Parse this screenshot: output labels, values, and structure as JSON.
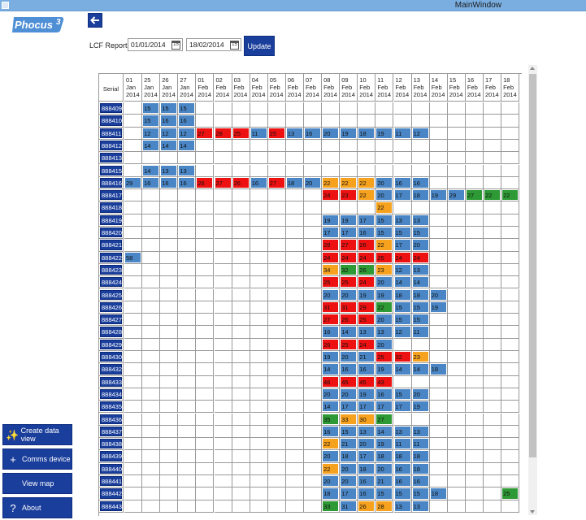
{
  "window": {
    "title": "MainWindow"
  },
  "brand": {
    "logo_text": "Phocus",
    "logo_superscript": "3"
  },
  "sidebar": {
    "buttons": [
      {
        "name": "create-data-view-button",
        "icon": "sparkle-icon",
        "glyph": "✨",
        "label": "Create data view"
      },
      {
        "name": "comms-device-button",
        "icon": "plus-icon",
        "glyph": "+",
        "label": "Comms device"
      },
      {
        "name": "view-map-button",
        "icon": "",
        "glyph": "",
        "label": "View map"
      },
      {
        "name": "about-button",
        "icon": "question-icon",
        "glyph": "?",
        "label": "About"
      }
    ]
  },
  "toolbar": {
    "back_icon": "back-arrow-icon",
    "report_label": "LCF Report",
    "date_from": "01/01/2014",
    "date_to": "18/02/2014",
    "calendar_day": "15",
    "update_label": "Update"
  },
  "colors": {
    "blue": "#4a86c5",
    "red": "#ee1111",
    "orange": "#f7a21e",
    "green": "#2e9a35",
    "button": "#1a3e9b"
  },
  "table": {
    "serial_header": "Serial",
    "columns": [
      [
        "01",
        "Jan",
        "2014"
      ],
      [
        "25",
        "Jan",
        "2014"
      ],
      [
        "26",
        "Jan",
        "2014"
      ],
      [
        "27",
        "Jan",
        "2014"
      ],
      [
        "01",
        "Feb",
        "2014"
      ],
      [
        "02",
        "Feb",
        "2014"
      ],
      [
        "03",
        "Feb",
        "2014"
      ],
      [
        "04",
        "Feb",
        "2014"
      ],
      [
        "05",
        "Feb",
        "2014"
      ],
      [
        "06",
        "Feb",
        "2014"
      ],
      [
        "07",
        "Feb",
        "2014"
      ],
      [
        "08",
        "Feb",
        "2014"
      ],
      [
        "09",
        "Feb",
        "2014"
      ],
      [
        "10",
        "Feb",
        "2014"
      ],
      [
        "11",
        "Feb",
        "2014"
      ],
      [
        "12",
        "Feb",
        "2014"
      ],
      [
        "13",
        "Feb",
        "2014"
      ],
      [
        "14",
        "Feb",
        "2014"
      ],
      [
        "15",
        "Feb",
        "2014"
      ],
      [
        "16",
        "Feb",
        "2014"
      ],
      [
        "17",
        "Feb",
        "2014"
      ],
      [
        "18",
        "Feb",
        "2014"
      ]
    ],
    "rows": [
      {
        "serial": "888409",
        "cells": [
          [
            1,
            "15",
            "b"
          ],
          [
            2,
            "15",
            "b"
          ],
          [
            3,
            "15",
            "b"
          ]
        ]
      },
      {
        "serial": "888410",
        "cells": [
          [
            1,
            "15",
            "b"
          ],
          [
            2,
            "16",
            "b"
          ],
          [
            3,
            "16",
            "b"
          ]
        ]
      },
      {
        "serial": "888411",
        "cells": [
          [
            1,
            "12",
            "b"
          ],
          [
            2,
            "12",
            "b"
          ],
          [
            3,
            "12",
            "b"
          ],
          [
            4,
            "27",
            "r"
          ],
          [
            5,
            "28",
            "r"
          ],
          [
            6,
            "25",
            "r"
          ],
          [
            7,
            "11",
            "b"
          ],
          [
            8,
            "25",
            "r"
          ],
          [
            9,
            "13",
            "b"
          ],
          [
            10,
            "16",
            "b"
          ],
          [
            11,
            "20",
            "b"
          ],
          [
            12,
            "19",
            "b"
          ],
          [
            13,
            "18",
            "b"
          ],
          [
            14,
            "19",
            "b"
          ],
          [
            15,
            "11",
            "b"
          ],
          [
            16,
            "12",
            "b"
          ]
        ]
      },
      {
        "serial": "888412",
        "cells": [
          [
            1,
            "14",
            "b"
          ],
          [
            2,
            "14",
            "b"
          ],
          [
            3,
            "14",
            "b"
          ]
        ]
      },
      {
        "serial": "888413",
        "cells": []
      },
      {
        "serial": "888415",
        "cells": [
          [
            1,
            "14",
            "b"
          ],
          [
            2,
            "13",
            "b"
          ],
          [
            3,
            "13",
            "b"
          ]
        ]
      },
      {
        "serial": "888416",
        "cells": [
          [
            0,
            "29",
            "b"
          ],
          [
            1,
            "16",
            "b"
          ],
          [
            2,
            "16",
            "b"
          ],
          [
            3,
            "16",
            "b"
          ],
          [
            4,
            "26",
            "r"
          ],
          [
            5,
            "27",
            "r"
          ],
          [
            6,
            "26",
            "r"
          ],
          [
            7,
            "16",
            "b"
          ],
          [
            8,
            "27",
            "r"
          ],
          [
            9,
            "18",
            "b"
          ],
          [
            10,
            "20",
            "b"
          ],
          [
            11,
            "22",
            "o"
          ],
          [
            12,
            "22",
            "o"
          ],
          [
            13,
            "22",
            "o"
          ],
          [
            14,
            "20",
            "b"
          ],
          [
            15,
            "16",
            "b"
          ],
          [
            16,
            "16",
            "b"
          ]
        ]
      },
      {
        "serial": "888417",
        "cells": [
          [
            11,
            "24",
            "r"
          ],
          [
            12,
            "23",
            "r"
          ],
          [
            13,
            "22",
            "o"
          ],
          [
            14,
            "20",
            "b"
          ],
          [
            15,
            "17",
            "b"
          ],
          [
            16,
            "18",
            "b"
          ],
          [
            17,
            "19",
            "b"
          ],
          [
            18,
            "29",
            "b"
          ],
          [
            19,
            "27",
            "g"
          ],
          [
            20,
            "22",
            "g"
          ],
          [
            21,
            "22",
            "g"
          ]
        ]
      },
      {
        "serial": "888418",
        "cells": [
          [
            14,
            "22",
            "o"
          ]
        ]
      },
      {
        "serial": "888419",
        "cells": [
          [
            11,
            "19",
            "b"
          ],
          [
            12,
            "19",
            "b"
          ],
          [
            13,
            "17",
            "b"
          ],
          [
            14,
            "15",
            "b"
          ],
          [
            15,
            "13",
            "b"
          ],
          [
            16,
            "13",
            "b"
          ]
        ]
      },
      {
        "serial": "888420",
        "cells": [
          [
            11,
            "17",
            "b"
          ],
          [
            12,
            "17",
            "b"
          ],
          [
            13,
            "16",
            "b"
          ],
          [
            14,
            "15",
            "b"
          ],
          [
            15,
            "15",
            "b"
          ],
          [
            16,
            "15",
            "b"
          ]
        ]
      },
      {
        "serial": "888421",
        "cells": [
          [
            11,
            "28",
            "r"
          ],
          [
            12,
            "27",
            "r"
          ],
          [
            13,
            "26",
            "r"
          ],
          [
            14,
            "22",
            "o"
          ],
          [
            15,
            "17",
            "b"
          ],
          [
            16,
            "20",
            "b"
          ]
        ]
      },
      {
        "serial": "888422",
        "cells": [
          [
            0,
            "58",
            "b"
          ],
          [
            11,
            "24",
            "r"
          ],
          [
            12,
            "24",
            "r"
          ],
          [
            13,
            "24",
            "r"
          ],
          [
            14,
            "25",
            "r"
          ],
          [
            15,
            "24",
            "r"
          ],
          [
            16,
            "24",
            "r"
          ]
        ]
      },
      {
        "serial": "888423",
        "cells": [
          [
            11,
            "34",
            "o"
          ],
          [
            12,
            "32",
            "g"
          ],
          [
            13,
            "26",
            "g"
          ],
          [
            14,
            "23",
            "o"
          ],
          [
            15,
            "12",
            "b"
          ],
          [
            16,
            "13",
            "b"
          ]
        ]
      },
      {
        "serial": "888424",
        "cells": [
          [
            11,
            "25",
            "r"
          ],
          [
            12,
            "25",
            "r"
          ],
          [
            13,
            "24",
            "r"
          ],
          [
            14,
            "20",
            "b"
          ],
          [
            15,
            "14",
            "b"
          ],
          [
            16,
            "14",
            "b"
          ]
        ]
      },
      {
        "serial": "888425",
        "cells": [
          [
            11,
            "20",
            "b"
          ],
          [
            12,
            "20",
            "b"
          ],
          [
            13,
            "19",
            "b"
          ],
          [
            14,
            "19",
            "b"
          ],
          [
            15,
            "18",
            "b"
          ],
          [
            16,
            "18",
            "b"
          ],
          [
            17,
            "20",
            "b"
          ]
        ]
      },
      {
        "serial": "888426",
        "cells": [
          [
            11,
            "31",
            "r"
          ],
          [
            12,
            "31",
            "r"
          ],
          [
            13,
            "29",
            "r"
          ],
          [
            14,
            "22",
            "g"
          ],
          [
            15,
            "15",
            "b"
          ],
          [
            16,
            "15",
            "b"
          ],
          [
            17,
            "19",
            "b"
          ]
        ]
      },
      {
        "serial": "888427",
        "cells": [
          [
            11,
            "27",
            "r"
          ],
          [
            12,
            "26",
            "r"
          ],
          [
            13,
            "25",
            "r"
          ],
          [
            14,
            "20",
            "b"
          ],
          [
            15,
            "15",
            "b"
          ],
          [
            16,
            "15",
            "b"
          ]
        ]
      },
      {
        "serial": "888428",
        "cells": [
          [
            11,
            "16",
            "b"
          ],
          [
            12,
            "14",
            "b"
          ],
          [
            13,
            "13",
            "b"
          ],
          [
            14,
            "13",
            "b"
          ],
          [
            15,
            "12",
            "b"
          ],
          [
            16,
            "11",
            "b"
          ]
        ]
      },
      {
        "serial": "888429",
        "cells": [
          [
            11,
            "26",
            "r"
          ],
          [
            12,
            "25",
            "r"
          ],
          [
            13,
            "24",
            "r"
          ],
          [
            14,
            "20",
            "b"
          ]
        ]
      },
      {
        "serial": "888430",
        "cells": [
          [
            11,
            "19",
            "b"
          ],
          [
            12,
            "20",
            "b"
          ],
          [
            13,
            "21",
            "b"
          ],
          [
            14,
            "25",
            "r"
          ],
          [
            15,
            "32",
            "r"
          ],
          [
            16,
            "23",
            "o"
          ]
        ]
      },
      {
        "serial": "888432",
        "cells": [
          [
            11,
            "14",
            "b"
          ],
          [
            12,
            "16",
            "b"
          ],
          [
            13,
            "16",
            "b"
          ],
          [
            14,
            "19",
            "b"
          ],
          [
            15,
            "14",
            "b"
          ],
          [
            16,
            "14",
            "b"
          ],
          [
            17,
            "18",
            "b"
          ]
        ]
      },
      {
        "serial": "888433",
        "cells": [
          [
            11,
            "46",
            "r"
          ],
          [
            12,
            "45",
            "r"
          ],
          [
            13,
            "45",
            "r"
          ],
          [
            14,
            "43",
            "r"
          ]
        ]
      },
      {
        "serial": "888434",
        "cells": [
          [
            11,
            "20",
            "b"
          ],
          [
            12,
            "20",
            "b"
          ],
          [
            13,
            "19",
            "b"
          ],
          [
            14,
            "16",
            "b"
          ],
          [
            15,
            "15",
            "b"
          ],
          [
            16,
            "20",
            "b"
          ]
        ]
      },
      {
        "serial": "888435",
        "cells": [
          [
            11,
            "14",
            "b"
          ],
          [
            12,
            "17",
            "b"
          ],
          [
            13,
            "17",
            "b"
          ],
          [
            14,
            "17",
            "b"
          ],
          [
            15,
            "17",
            "b"
          ],
          [
            16,
            "19",
            "b"
          ]
        ]
      },
      {
        "serial": "888436",
        "cells": [
          [
            11,
            "35",
            "g"
          ],
          [
            12,
            "33",
            "o"
          ],
          [
            13,
            "30",
            "o"
          ],
          [
            14,
            "27",
            "g"
          ]
        ]
      },
      {
        "serial": "888437",
        "cells": [
          [
            11,
            "16",
            "b"
          ],
          [
            12,
            "15",
            "b"
          ],
          [
            13,
            "13",
            "b"
          ],
          [
            14,
            "14",
            "b"
          ],
          [
            15,
            "13",
            "b"
          ],
          [
            16,
            "13",
            "b"
          ]
        ]
      },
      {
        "serial": "888438",
        "cells": [
          [
            11,
            "22",
            "o"
          ],
          [
            12,
            "21",
            "b"
          ],
          [
            13,
            "20",
            "b"
          ],
          [
            14,
            "19",
            "b"
          ],
          [
            15,
            "11",
            "b"
          ],
          [
            16,
            "11",
            "b"
          ]
        ]
      },
      {
        "serial": "888439",
        "cells": [
          [
            11,
            "20",
            "b"
          ],
          [
            12,
            "18",
            "b"
          ],
          [
            13,
            "17",
            "b"
          ],
          [
            14,
            "18",
            "b"
          ],
          [
            15,
            "18",
            "b"
          ],
          [
            16,
            "18",
            "b"
          ]
        ]
      },
      {
        "serial": "888440",
        "cells": [
          [
            11,
            "22",
            "o"
          ],
          [
            12,
            "20",
            "b"
          ],
          [
            13,
            "18",
            "b"
          ],
          [
            14,
            "20",
            "b"
          ],
          [
            15,
            "16",
            "b"
          ],
          [
            16,
            "18",
            "b"
          ]
        ]
      },
      {
        "serial": "888441",
        "cells": [
          [
            11,
            "20",
            "b"
          ],
          [
            12,
            "20",
            "b"
          ],
          [
            13,
            "16",
            "b"
          ],
          [
            14,
            "21",
            "b"
          ],
          [
            15,
            "16",
            "b"
          ],
          [
            16,
            "16",
            "b"
          ]
        ]
      },
      {
        "serial": "888442",
        "cells": [
          [
            11,
            "18",
            "b"
          ],
          [
            12,
            "17",
            "b"
          ],
          [
            13,
            "16",
            "b"
          ],
          [
            14,
            "15",
            "b"
          ],
          [
            15,
            "15",
            "b"
          ],
          [
            16,
            "15",
            "b"
          ],
          [
            17,
            "18",
            "b"
          ],
          [
            21,
            "25",
            "g"
          ]
        ]
      },
      {
        "serial": "888443",
        "cells": [
          [
            11,
            "33",
            "g"
          ],
          [
            12,
            "31",
            "b"
          ],
          [
            13,
            "26",
            "o"
          ],
          [
            14,
            "28",
            "o"
          ],
          [
            15,
            "13",
            "b"
          ],
          [
            16,
            "13",
            "b"
          ]
        ]
      }
    ]
  }
}
